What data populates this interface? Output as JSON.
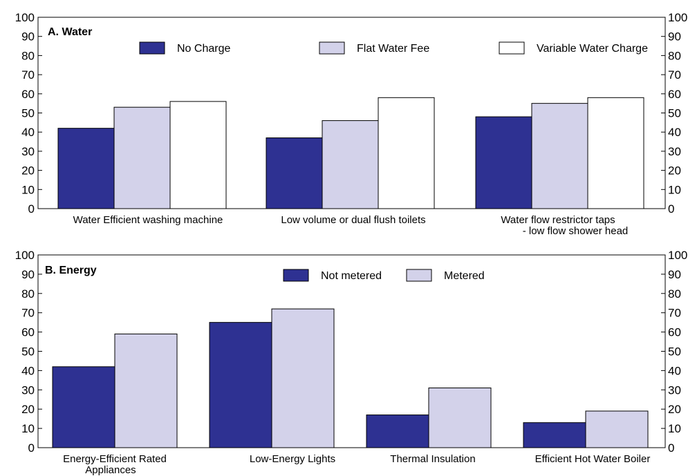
{
  "colors": {
    "navy": "#2e3192",
    "lavender": "#d3d2ea",
    "white": "#ffffff",
    "axis": "#000000"
  },
  "chart_data": [
    {
      "type": "bar",
      "title": "A. Water",
      "ylim": [
        0,
        100
      ],
      "yticks": [
        0,
        10,
        20,
        30,
        40,
        50,
        60,
        70,
        80,
        90,
        100
      ],
      "categories": [
        "Water Efficient washing machine",
        "Low volume or dual flush toilets",
        [
          "Water flow restrictor taps",
          "- low flow shower head"
        ]
      ],
      "series": [
        {
          "name": "No Charge",
          "color": "#2e3192",
          "values": [
            42,
            37,
            48
          ]
        },
        {
          "name": "Flat Water Fee",
          "color": "#d3d2ea",
          "values": [
            53,
            46,
            55
          ]
        },
        {
          "name": "Variable Water Charge",
          "color": "#ffffff",
          "values": [
            56,
            58,
            58
          ]
        }
      ],
      "legend": "top",
      "grid": false
    },
    {
      "type": "bar",
      "title": "B. Energy",
      "ylim": [
        0,
        100
      ],
      "yticks": [
        0,
        10,
        20,
        30,
        40,
        50,
        60,
        70,
        80,
        90,
        100
      ],
      "categories": [
        [
          "Energy-Efficient Rated",
          "Appliances"
        ],
        "Low-Energy Lights",
        "Thermal Insulation",
        "Efficient Hot Water Boiler"
      ],
      "series": [
        {
          "name": "Not metered",
          "color": "#2e3192",
          "values": [
            42,
            65,
            17,
            13
          ]
        },
        {
          "name": "Metered",
          "color": "#d3d2ea",
          "values": [
            59,
            72,
            31,
            19
          ]
        }
      ],
      "legend": "top",
      "grid": false
    }
  ]
}
